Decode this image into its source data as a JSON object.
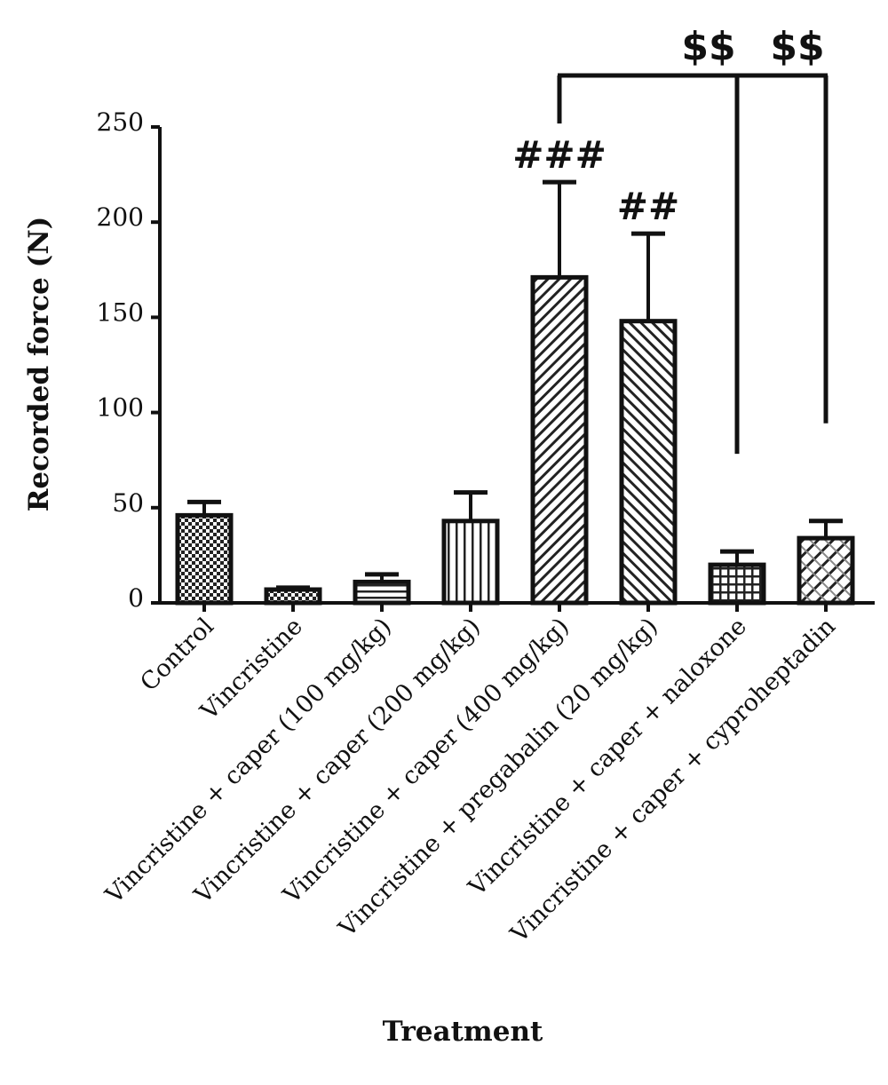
{
  "chart_data": {
    "type": "bar",
    "xlabel": "Treatment",
    "ylabel": "Recorded force (N)",
    "ylim": [
      0,
      250
    ],
    "yticks": [
      0,
      50,
      100,
      150,
      200,
      250
    ],
    "grid": false,
    "categories": [
      "Control",
      "Vincristine",
      "Vincristine + caper (100 mg/kg)",
      "Vincristine + caper (200 mg/kg)",
      "Vincristine + caper (400 mg/kg)",
      "Vincristine + pregabalin (20 mg/kg)",
      "Vincristine + caper + naloxone",
      "Vincristine + caper + cyproheptadin"
    ],
    "values": [
      46,
      7,
      11,
      43,
      171,
      148,
      20,
      34
    ],
    "error_upper": [
      53,
      8,
      15,
      58,
      221,
      194,
      27,
      43
    ],
    "fill_patterns": [
      "checker",
      "checker",
      "horizontal",
      "vertical",
      "diagonal-right",
      "diagonal-left",
      "grid",
      "diagonal-cross"
    ],
    "significance": [
      {
        "category_index": 4,
        "label": "###"
      },
      {
        "category_index": 5,
        "label": "##"
      }
    ],
    "comparisons": [
      {
        "from": 4,
        "to": 6,
        "label": "$$"
      },
      {
        "from": 4,
        "to": 7,
        "label": "$$"
      }
    ],
    "colors": {
      "bar_stroke": "#111111",
      "background": "#ffffff"
    }
  }
}
